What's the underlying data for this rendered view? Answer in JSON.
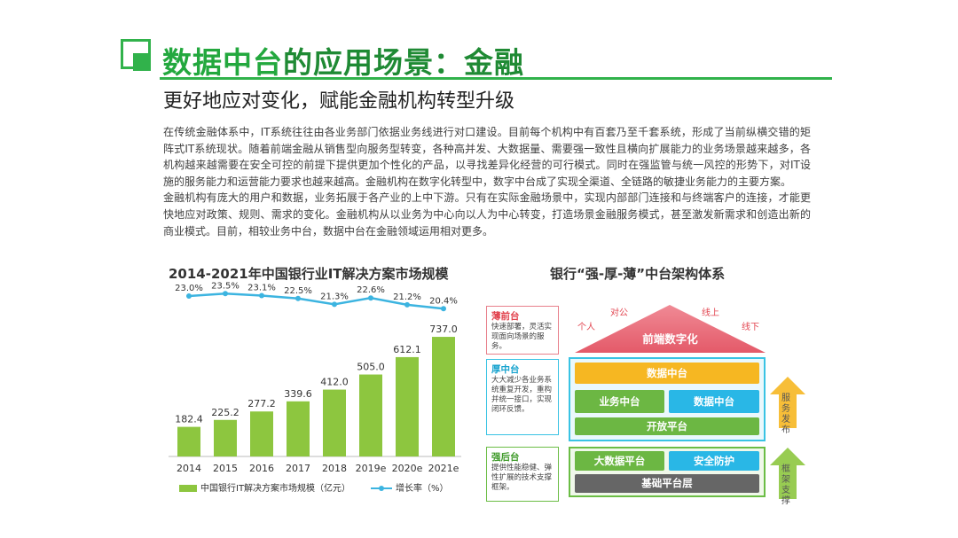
{
  "header": {
    "title_part1": "数据中台",
    "title_part2": "的应用场景：金融",
    "subtitle": "更好地应对变化，赋能金融机构转型升级"
  },
  "body": {
    "paragraph1": "在传统金融体系中，IT系统往往由各业务部门依据业务线进行对口建设。目前每个机构中有百套乃至千套系统，形成了当前纵横交错的矩阵式IT系统现状。随着前端金融从销售型向服务型转变，各种高并发、大数据量、需要强一致性且横向扩展能力的业务场景越来越多，各机构越来越需要在安全可控的前提下提供更加个性化的产品，以寻找差异化经营的可行模式。同时在强监管与统一风控的形势下，对IT设施的服务能力和运营能力要求也越来越高。金融机构在数字化转型中，数字中台成了实现全渠道、全链路的敏捷业务能力的主要方案。",
    "paragraph2": "金融机构有庞大的用户和数据，业务拓展于各产业的上中下游。只有在实际金融场景中，实现内部部门连接和与终端客户的连接，才能更快地应对政策、规则、需求的变化。金融机构从以业务为中心向以人为中心转变，打造场景金融服务模式，甚至激发新需求和创造出新的商业模式。目前，相较业务中台，数据中台在金融领域运用相对更多。"
  },
  "chart_data": {
    "type": "bar",
    "title": "2014-2021年中国银行业IT解决方案市场规模",
    "categories": [
      "2014",
      "2015",
      "2016",
      "2017",
      "2018",
      "2019e",
      "2020e",
      "2021e"
    ],
    "series": [
      {
        "name": "中国银行IT解决方案市场规模（亿元）",
        "type": "bar",
        "values": [
          182.4,
          225.2,
          277.2,
          339.6,
          412.0,
          505.0,
          612.1,
          737.0
        ],
        "labels": [
          "182.4",
          "225.2",
          "277.2",
          "339.6",
          "412.0",
          "505.0",
          "612.1",
          "737.0"
        ],
        "color": "#8dc63f"
      },
      {
        "name": "增长率（%）",
        "type": "line",
        "values": [
          23.0,
          23.5,
          23.1,
          22.5,
          21.3,
          22.6,
          21.2,
          20.4
        ],
        "labels": [
          "23.0%",
          "23.5%",
          "23.1%",
          "22.5%",
          "21.3%",
          "22.6%",
          "21.2%",
          "20.4%"
        ],
        "color": "#3cb4e0"
      }
    ],
    "ylim_bar": [
      0,
      800
    ],
    "ylim_line": [
      15,
      25
    ],
    "legend": "bottom",
    "grid": false
  },
  "diagram": {
    "title": "银行“强-厚-薄”中台架构体系",
    "roof": {
      "label": "前端数字化",
      "tags": [
        "对公",
        "个人",
        "线上",
        "线下"
      ]
    },
    "thin_front": {
      "title": "薄前台",
      "text": "快速部署，灵活实现面向场景的服务。"
    },
    "thick_middle": {
      "title": "厚中台",
      "text": "大大减少各业务系统重复开发，重构并统一接口，实现闭环反馈。"
    },
    "strong_back": {
      "title": "强后台",
      "text": "提供性能稳健、弹性扩展的技术支撑框架。"
    },
    "blocks": {
      "data_mid_top": "数据中台",
      "biz_mid": "业务中台",
      "data_mid": "数据中台",
      "open_platform": "开放平台",
      "bigdata_platform": "大数据平台",
      "security": "安全防护",
      "base_platform": "基础平台层"
    },
    "arrows": {
      "service": "服务发布",
      "frame": "框架支撑"
    },
    "colors": {
      "roof": "#e96b78",
      "yellow": "#f6b722",
      "green": "#6cb743",
      "cyan": "#29b7e6",
      "grey": "#666666"
    }
  }
}
